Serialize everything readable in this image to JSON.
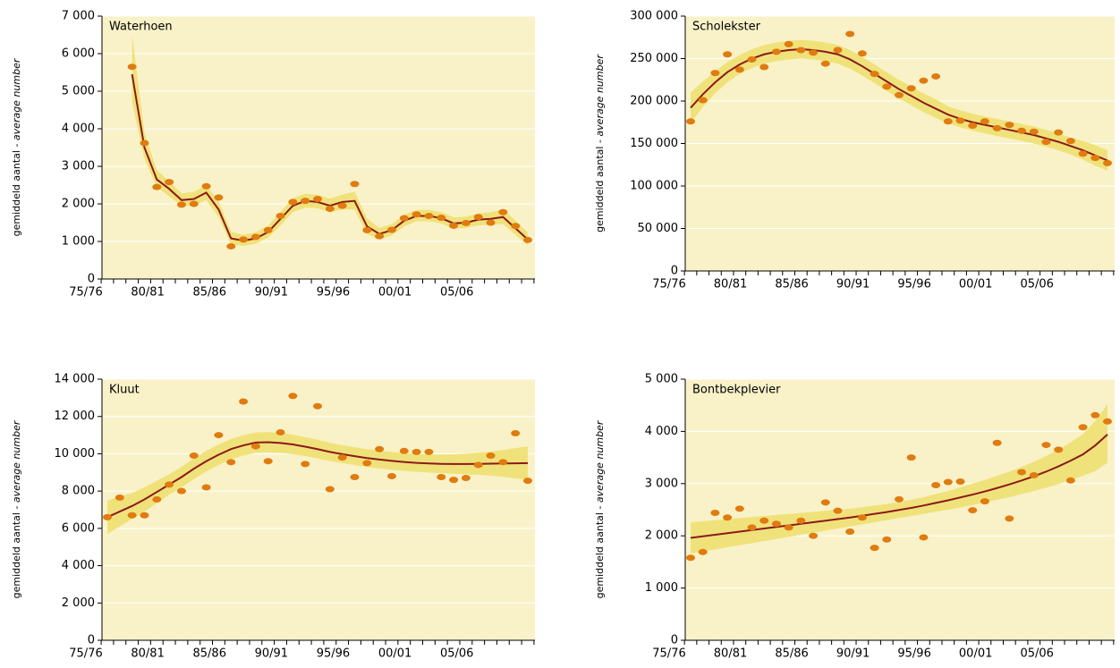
{
  "chart_data": [
    {
      "type": "scatter",
      "title": "Waterhoen",
      "ylabel": "gemiddeld aantal - ",
      "ylabel_italic": "average number",
      "categories": [
        "75/76",
        null,
        null,
        null,
        null,
        "80/81",
        null,
        null,
        null,
        null,
        "85/86",
        null,
        null,
        null,
        null,
        "90/91",
        null,
        null,
        null,
        null,
        "95/96",
        null,
        null,
        null,
        null,
        "00/01",
        null,
        null,
        null,
        null,
        "05/06",
        null,
        null,
        null,
        null
      ],
      "points": [
        null,
        null,
        5650,
        3620,
        2450,
        2580,
        1980,
        2000,
        2470,
        2170,
        870,
        1050,
        1120,
        1300,
        1680,
        2050,
        2080,
        2130,
        1870,
        1950,
        2530,
        1300,
        1140,
        1310,
        1620,
        1720,
        1680,
        1630,
        1420,
        1490,
        1650,
        1500,
        1780,
        1410,
        1040
      ],
      "trend": [
        null,
        null,
        5450,
        3500,
        2650,
        2400,
        2100,
        2130,
        2300,
        1850,
        1080,
        1020,
        1080,
        1250,
        1600,
        1950,
        2080,
        2050,
        1950,
        2050,
        2080,
        1400,
        1200,
        1300,
        1550,
        1680,
        1680,
        1620,
        1480,
        1500,
        1580,
        1600,
        1650,
        1350,
        1050
      ],
      "band_low": [
        null,
        null,
        4700,
        3200,
        2450,
        2200,
        1950,
        1950,
        2100,
        1650,
        920,
        880,
        940,
        1100,
        1420,
        1780,
        1900,
        1880,
        1780,
        1850,
        1850,
        1200,
        1060,
        1160,
        1400,
        1540,
        1540,
        1480,
        1340,
        1360,
        1430,
        1440,
        1460,
        1180,
        900
      ],
      "band_high": [
        null,
        null,
        6500,
        3900,
        2900,
        2600,
        2280,
        2320,
        2500,
        2070,
        1260,
        1180,
        1240,
        1420,
        1790,
        2150,
        2270,
        2240,
        2140,
        2250,
        2320,
        1610,
        1360,
        1460,
        1710,
        1840,
        1840,
        1780,
        1640,
        1660,
        1750,
        1780,
        1860,
        1560,
        1240
      ],
      "ylim": [
        0,
        7000
      ],
      "yticks": [
        0,
        {
          "value": 1000,
          "label": "1 000"
        },
        {
          "value": 2000,
          "label": "2 000"
        },
        {
          "value": 3000,
          "label": "3 000"
        },
        {
          "value": 4000,
          "label": "4 000"
        },
        {
          "value": 5000,
          "label": "5 000"
        },
        {
          "value": 6000,
          "label": "6 000"
        },
        {
          "value": 7000,
          "label": "7 000"
        }
      ],
      "grid": true,
      "point_color": "#e07b10",
      "line_color": "#8b1a1a",
      "band_color": "#f0e27a",
      "background": "#f9f2c8"
    },
    {
      "type": "scatter",
      "title": "Scholekster",
      "ylabel": "gemiddeld aantal - ",
      "ylabel_italic": "average number",
      "categories": [
        "75/76",
        null,
        null,
        null,
        null,
        "80/81",
        null,
        null,
        null,
        null,
        "85/86",
        null,
        null,
        null,
        null,
        "90/91",
        null,
        null,
        null,
        null,
        "95/96",
        null,
        null,
        null,
        null,
        "00/01",
        null,
        null,
        null,
        null,
        "05/06",
        null,
        null,
        null,
        null
      ],
      "points": [
        176000,
        201000,
        233000,
        255000,
        237000,
        249000,
        240000,
        258000,
        267000,
        260000,
        257000,
        244000,
        260000,
        279000,
        256000,
        232000,
        217000,
        207000,
        215000,
        224000,
        229000,
        176000,
        177000,
        171000,
        176000,
        168000,
        172000,
        165000,
        164000,
        152000,
        163000,
        153000,
        138000,
        133000,
        127000
      ],
      "trend": [
        192000,
        208000,
        222000,
        234000,
        243000,
        250000,
        255000,
        258000,
        260000,
        261000,
        260000,
        258000,
        255000,
        249000,
        241000,
        232000,
        223000,
        214000,
        206000,
        198000,
        191000,
        184000,
        179000,
        175000,
        172000,
        169000,
        166000,
        163000,
        160000,
        156000,
        152000,
        147000,
        142000,
        136000,
        130000
      ],
      "band_low": [
        174000,
        193000,
        209000,
        222000,
        232000,
        239000,
        244000,
        247000,
        249000,
        250000,
        249000,
        247000,
        244000,
        238000,
        230000,
        221000,
        212000,
        203000,
        195000,
        187000,
        180000,
        174000,
        169000,
        165000,
        162000,
        159000,
        156000,
        153000,
        150000,
        146000,
        142000,
        137000,
        131000,
        124000,
        118000
      ],
      "band_high": [
        210000,
        223000,
        235000,
        246000,
        254000,
        261000,
        266000,
        269000,
        271000,
        272000,
        271000,
        269000,
        266000,
        260000,
        252000,
        243000,
        234000,
        225000,
        217000,
        209000,
        202000,
        194000,
        189000,
        185000,
        182000,
        179000,
        176000,
        173000,
        170000,
        166000,
        162000,
        157000,
        153000,
        148000,
        142000
      ],
      "ylim": [
        0,
        300000
      ],
      "yticks": [
        0,
        {
          "value": 50000,
          "label": "50 000"
        },
        {
          "value": 100000,
          "label": "100 000"
        },
        {
          "value": 150000,
          "label": "150 000"
        },
        {
          "value": 200000,
          "label": "200 000"
        },
        {
          "value": 250000,
          "label": "250 000"
        },
        {
          "value": 300000,
          "label": "300 000"
        }
      ],
      "grid": true,
      "point_color": "#e07b10",
      "line_color": "#8b1a1a",
      "band_color": "#f0e27a",
      "background": "#f9f2c8"
    },
    {
      "type": "scatter",
      "title": "Kluut",
      "ylabel": "gemiddeld aantal - ",
      "ylabel_italic": "average number",
      "categories": [
        "75/76",
        null,
        null,
        null,
        null,
        "80/81",
        null,
        null,
        null,
        null,
        "85/86",
        null,
        null,
        null,
        null,
        "90/91",
        null,
        null,
        null,
        null,
        "95/96",
        null,
        null,
        null,
        null,
        "00/01",
        null,
        null,
        null,
        null,
        "05/06",
        null,
        null,
        null,
        null
      ],
      "points": [
        6600,
        7650,
        6700,
        6700,
        7550,
        8350,
        8000,
        9900,
        8200,
        11000,
        9550,
        12800,
        10400,
        9600,
        11150,
        13100,
        9450,
        12550,
        8100,
        9800,
        8750,
        9500,
        10250,
        8800,
        10150,
        10100,
        10100,
        8750,
        8600,
        8700,
        9400,
        9900,
        9550,
        11100,
        8550
      ],
      "trend": [
        6600,
        6900,
        7200,
        7550,
        7950,
        8350,
        8750,
        9200,
        9600,
        9950,
        10250,
        10450,
        10600,
        10620,
        10580,
        10500,
        10380,
        10250,
        10100,
        9980,
        9870,
        9770,
        9690,
        9620,
        9560,
        9510,
        9480,
        9460,
        9450,
        9450,
        9460,
        9470,
        9480,
        9490,
        9500
      ],
      "band_low": [
        5700,
        6100,
        6500,
        6900,
        7350,
        7800,
        8200,
        8650,
        9050,
        9400,
        9700,
        9900,
        10050,
        10080,
        10050,
        9980,
        9870,
        9750,
        9610,
        9500,
        9390,
        9290,
        9210,
        9140,
        9080,
        9030,
        8990,
        8960,
        8930,
        8900,
        8870,
        8820,
        8760,
        8680,
        8600
      ],
      "band_high": [
        7500,
        7700,
        7900,
        8200,
        8550,
        8900,
        9300,
        9750,
        10150,
        10500,
        10800,
        11000,
        11150,
        11160,
        11110,
        11020,
        10890,
        10750,
        10590,
        10460,
        10350,
        10250,
        10170,
        10100,
        10040,
        9990,
        9970,
        9960,
        9970,
        10000,
        10050,
        10120,
        10200,
        10300,
        10400
      ],
      "ylim": [
        0,
        14000
      ],
      "yticks": [
        0,
        {
          "value": 2000,
          "label": "2 000"
        },
        {
          "value": 4000,
          "label": "4 000"
        },
        {
          "value": 6000,
          "label": "6 000"
        },
        {
          "value": 8000,
          "label": "8 000"
        },
        {
          "value": 10000,
          "label": "10 000"
        },
        {
          "value": 12000,
          "label": "12 000"
        },
        {
          "value": 14000,
          "label": "14 000"
        }
      ],
      "grid": true,
      "point_color": "#e07b10",
      "line_color": "#8b1a1a",
      "band_color": "#f0e27a",
      "background": "#f9f2c8"
    },
    {
      "type": "scatter",
      "title": "Bontbekplevier",
      "ylabel": "gemiddeld aantal - ",
      "ylabel_italic": "average number",
      "categories": [
        "75/76",
        null,
        null,
        null,
        null,
        "80/81",
        null,
        null,
        null,
        null,
        "85/86",
        null,
        null,
        null,
        null,
        "90/91",
        null,
        null,
        null,
        null,
        "95/96",
        null,
        null,
        null,
        null,
        "00/01",
        null,
        null,
        null,
        null,
        "05/06",
        null,
        null,
        null,
        null
      ],
      "points": [
        1580,
        1690,
        2440,
        2350,
        2520,
        2160,
        2290,
        2230,
        2160,
        2290,
        2000,
        2640,
        2480,
        2080,
        2350,
        1770,
        1930,
        2700,
        3500,
        1970,
        2970,
        3030,
        3040,
        2490,
        2660,
        3780,
        2330,
        3220,
        3160,
        3740,
        3650,
        3060,
        4080,
        4310,
        4190
      ],
      "trend": [
        1960,
        1990,
        2020,
        2050,
        2080,
        2110,
        2140,
        2170,
        2200,
        2230,
        2260,
        2290,
        2320,
        2350,
        2385,
        2420,
        2455,
        2495,
        2535,
        2580,
        2630,
        2680,
        2735,
        2790,
        2850,
        2915,
        2985,
        3060,
        3140,
        3230,
        3330,
        3440,
        3560,
        3730,
        3940
      ],
      "band_low": [
        1660,
        1700,
        1740,
        1780,
        1820,
        1860,
        1900,
        1940,
        1980,
        2020,
        2060,
        2100,
        2140,
        2180,
        2220,
        2260,
        2300,
        2340,
        2380,
        2420,
        2460,
        2500,
        2540,
        2590,
        2640,
        2690,
        2740,
        2800,
        2860,
        2920,
        2990,
        3070,
        3150,
        3240,
        3400
      ],
      "band_high": [
        2260,
        2280,
        2300,
        2320,
        2340,
        2360,
        2380,
        2400,
        2420,
        2440,
        2460,
        2480,
        2500,
        2520,
        2550,
        2580,
        2610,
        2650,
        2690,
        2740,
        2800,
        2860,
        2930,
        3000,
        3070,
        3150,
        3230,
        3320,
        3420,
        3530,
        3650,
        3790,
        3950,
        4200,
        4520
      ],
      "ylim": [
        0,
        5000
      ],
      "yticks": [
        0,
        {
          "value": 1000,
          "label": "1 000"
        },
        {
          "value": 2000,
          "label": "2 000"
        },
        {
          "value": 3000,
          "label": "3 000"
        },
        {
          "value": 4000,
          "label": "4 000"
        },
        {
          "value": 5000,
          "label": "5 000"
        }
      ],
      "grid": true,
      "point_color": "#e07b10",
      "line_color": "#8b1a1a",
      "band_color": "#f0e27a",
      "background": "#f9f2c8"
    }
  ]
}
